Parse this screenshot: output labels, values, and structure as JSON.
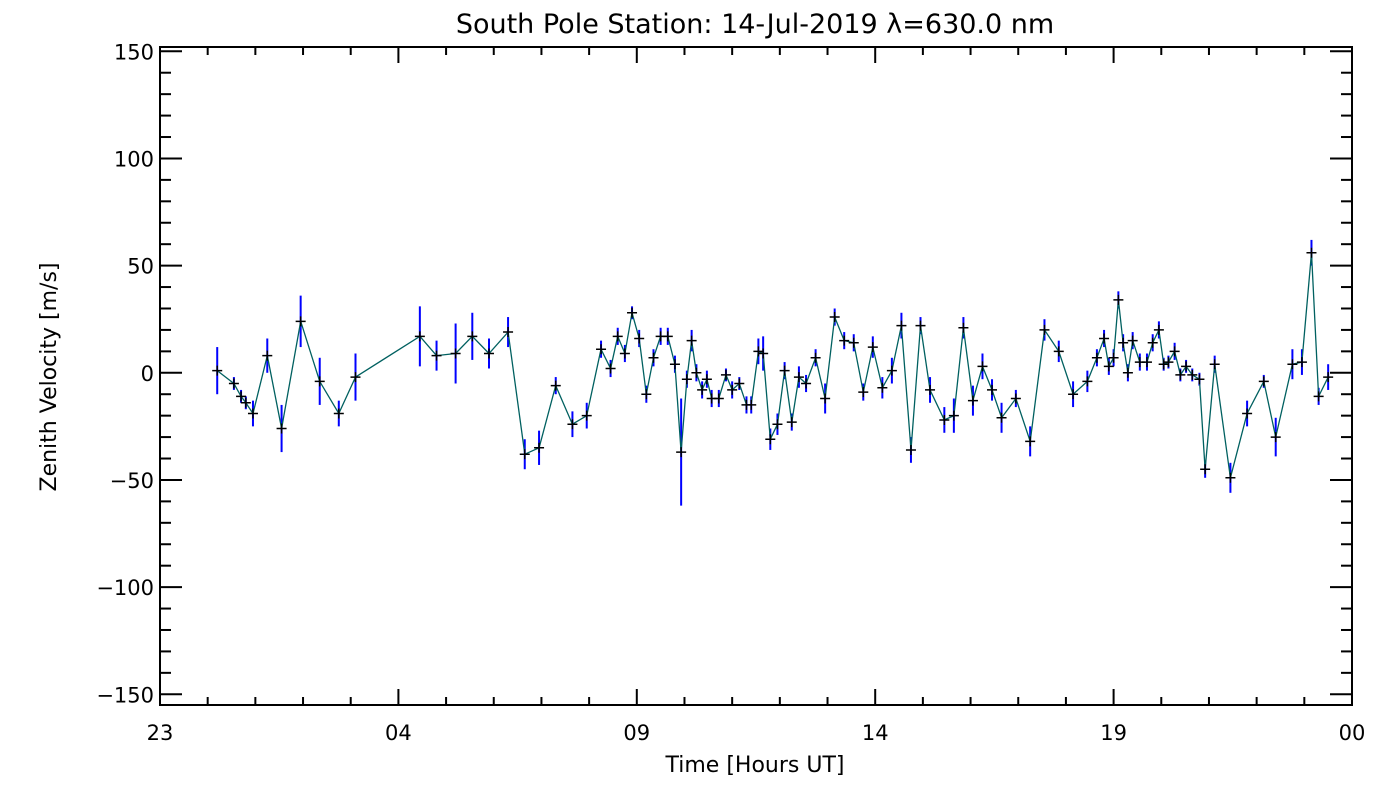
{
  "chart_data": {
    "type": "line",
    "title": "South Pole Station: 14-Jul-2019 λ=630.0 nm",
    "xlabel": "Time [Hours UT]",
    "ylabel": "Zenith Velocity [m/s]",
    "xlim": [
      23,
      48
    ],
    "ylim": [
      -155,
      152
    ],
    "xticks": [
      {
        "value": 23,
        "label": "23"
      },
      {
        "value": 28,
        "label": "04"
      },
      {
        "value": 33,
        "label": "09"
      },
      {
        "value": 38,
        "label": "14"
      },
      {
        "value": 43,
        "label": "19"
      },
      {
        "value": 48,
        "label": "00"
      }
    ],
    "yticks": [
      {
        "value": 150,
        "label": "150"
      },
      {
        "value": 100,
        "label": "100"
      },
      {
        "value": 50,
        "label": "50"
      },
      {
        "value": 0,
        "label": "0"
      },
      {
        "value": -50,
        "label": "−50"
      },
      {
        "value": -100,
        "label": "−100"
      },
      {
        "value": -150,
        "label": "−150"
      }
    ],
    "grid": false,
    "colors": {
      "line": "#006060",
      "marker": "#000000",
      "error_bar": "#0000ff",
      "axes": "#000000"
    },
    "series": [
      {
        "points": [
          {
            "x": 24.2,
            "y": 1,
            "err": 11
          },
          {
            "x": 24.55,
            "y": -5,
            "err": 3
          },
          {
            "x": 24.7,
            "y": -11,
            "err": 3
          },
          {
            "x": 24.8,
            "y": -14,
            "err": 3
          },
          {
            "x": 24.95,
            "y": -19,
            "err": 6
          },
          {
            "x": 25.25,
            "y": 8,
            "err": 8
          },
          {
            "x": 25.55,
            "y": -26,
            "err": 11
          },
          {
            "x": 25.95,
            "y": 24,
            "err": 12
          },
          {
            "x": 26.35,
            "y": -4,
            "err": 11
          },
          {
            "x": 26.75,
            "y": -19,
            "err": 6
          },
          {
            "x": 27.1,
            "y": -2,
            "err": 11
          },
          {
            "x": 28.45,
            "y": 17,
            "err": 14
          },
          {
            "x": 28.8,
            "y": 8,
            "err": 7
          },
          {
            "x": 29.2,
            "y": 9,
            "err": 14
          },
          {
            "x": 29.55,
            "y": 17,
            "err": 11
          },
          {
            "x": 29.9,
            "y": 9,
            "err": 7
          },
          {
            "x": 30.3,
            "y": 19,
            "err": 7
          },
          {
            "x": 30.65,
            "y": -38,
            "err": 7
          },
          {
            "x": 30.95,
            "y": -35,
            "err": 8
          },
          {
            "x": 31.3,
            "y": -6,
            "err": 4
          },
          {
            "x": 31.65,
            "y": -24,
            "err": 6
          },
          {
            "x": 31.95,
            "y": -20,
            "err": 6
          },
          {
            "x": 32.25,
            "y": 11,
            "err": 4
          },
          {
            "x": 32.45,
            "y": 2,
            "err": 4
          },
          {
            "x": 32.6,
            "y": 17,
            "err": 4
          },
          {
            "x": 32.75,
            "y": 9,
            "err": 4
          },
          {
            "x": 32.9,
            "y": 28,
            "err": 3
          },
          {
            "x": 33.05,
            "y": 16,
            "err": 4
          },
          {
            "x": 33.2,
            "y": -10,
            "err": 4
          },
          {
            "x": 33.35,
            "y": 7,
            "err": 4
          },
          {
            "x": 33.5,
            "y": 17,
            "err": 4
          },
          {
            "x": 33.65,
            "y": 17,
            "err": 4
          },
          {
            "x": 33.8,
            "y": 4,
            "err": 4
          },
          {
            "x": 33.93,
            "y": -37,
            "err": 25
          },
          {
            "x": 34.05,
            "y": -3,
            "err": 4
          },
          {
            "x": 34.15,
            "y": 15,
            "err": 5
          },
          {
            "x": 34.25,
            "y": 0,
            "err": 4
          },
          {
            "x": 34.37,
            "y": -8,
            "err": 4
          },
          {
            "x": 34.47,
            "y": -3,
            "err": 4
          },
          {
            "x": 34.57,
            "y": -12,
            "err": 4
          },
          {
            "x": 34.72,
            "y": -12,
            "err": 4
          },
          {
            "x": 34.87,
            "y": -1,
            "err": 3
          },
          {
            "x": 35.0,
            "y": -8,
            "err": 4
          },
          {
            "x": 35.15,
            "y": -5,
            "err": 3
          },
          {
            "x": 35.3,
            "y": -15,
            "err": 4
          },
          {
            "x": 35.4,
            "y": -15,
            "err": 4
          },
          {
            "x": 35.55,
            "y": 10,
            "err": 6
          },
          {
            "x": 35.65,
            "y": 9,
            "err": 8
          },
          {
            "x": 35.8,
            "y": -31,
            "err": 5
          },
          {
            "x": 35.95,
            "y": -24,
            "err": 5
          },
          {
            "x": 36.1,
            "y": 1,
            "err": 4
          },
          {
            "x": 36.25,
            "y": -23,
            "err": 4
          },
          {
            "x": 36.4,
            "y": -2,
            "err": 5
          },
          {
            "x": 36.55,
            "y": -5,
            "err": 4
          },
          {
            "x": 36.75,
            "y": 7,
            "err": 4
          },
          {
            "x": 36.95,
            "y": -12,
            "err": 7
          },
          {
            "x": 37.15,
            "y": 26,
            "err": 4
          },
          {
            "x": 37.35,
            "y": 15,
            "err": 4
          },
          {
            "x": 37.55,
            "y": 14,
            "err": 4
          },
          {
            "x": 37.75,
            "y": -9,
            "err": 4
          },
          {
            "x": 37.95,
            "y": 12,
            "err": 5
          },
          {
            "x": 38.15,
            "y": -7,
            "err": 5
          },
          {
            "x": 38.35,
            "y": 1,
            "err": 6
          },
          {
            "x": 38.55,
            "y": 22,
            "err": 6
          },
          {
            "x": 38.75,
            "y": -36,
            "err": 6
          },
          {
            "x": 38.95,
            "y": 22,
            "err": 4
          },
          {
            "x": 39.15,
            "y": -8,
            "err": 6
          },
          {
            "x": 39.45,
            "y": -22,
            "err": 6
          },
          {
            "x": 39.65,
            "y": -20,
            "err": 8
          },
          {
            "x": 39.85,
            "y": 21,
            "err": 5
          },
          {
            "x": 40.05,
            "y": -13,
            "err": 7
          },
          {
            "x": 40.25,
            "y": 3,
            "err": 6
          },
          {
            "x": 40.45,
            "y": -8,
            "err": 5
          },
          {
            "x": 40.65,
            "y": -21,
            "err": 7
          },
          {
            "x": 40.95,
            "y": -12,
            "err": 4
          },
          {
            "x": 41.25,
            "y": -32,
            "err": 7
          },
          {
            "x": 41.55,
            "y": 20,
            "err": 5
          },
          {
            "x": 41.85,
            "y": 10,
            "err": 5
          },
          {
            "x": 42.15,
            "y": -10,
            "err": 6
          },
          {
            "x": 42.45,
            "y": -4,
            "err": 5
          },
          {
            "x": 42.65,
            "y": 7,
            "err": 4
          },
          {
            "x": 42.8,
            "y": 16,
            "err": 4
          },
          {
            "x": 42.9,
            "y": 3,
            "err": 4
          },
          {
            "x": 43.0,
            "y": 7,
            "err": 4
          },
          {
            "x": 43.1,
            "y": 34,
            "err": 4
          },
          {
            "x": 43.2,
            "y": 14,
            "err": 4
          },
          {
            "x": 43.3,
            "y": 0,
            "err": 4
          },
          {
            "x": 43.4,
            "y": 15,
            "err": 4
          },
          {
            "x": 43.55,
            "y": 5,
            "err": 4
          },
          {
            "x": 43.7,
            "y": 5,
            "err": 4
          },
          {
            "x": 43.82,
            "y": 14,
            "err": 4
          },
          {
            "x": 43.95,
            "y": 20,
            "err": 4
          },
          {
            "x": 44.05,
            "y": 4,
            "err": 3
          },
          {
            "x": 44.15,
            "y": 5,
            "err": 3
          },
          {
            "x": 44.28,
            "y": 10,
            "err": 4
          },
          {
            "x": 44.4,
            "y": -1,
            "err": 3
          },
          {
            "x": 44.52,
            "y": 3,
            "err": 3
          },
          {
            "x": 44.65,
            "y": -1,
            "err": 3
          },
          {
            "x": 44.8,
            "y": -3,
            "err": 3
          },
          {
            "x": 44.92,
            "y": -45,
            "err": 4
          },
          {
            "x": 45.12,
            "y": 4,
            "err": 4
          },
          {
            "x": 45.45,
            "y": -49,
            "err": 7
          },
          {
            "x": 45.8,
            "y": -19,
            "err": 6
          },
          {
            "x": 46.15,
            "y": -4,
            "err": 3
          },
          {
            "x": 46.4,
            "y": -30,
            "err": 9
          },
          {
            "x": 46.75,
            "y": 4,
            "err": 7
          },
          {
            "x": 46.95,
            "y": 5,
            "err": 6
          },
          {
            "x": 47.15,
            "y": 56,
            "err": 6
          },
          {
            "x": 47.3,
            "y": -11,
            "err": 4
          },
          {
            "x": 47.5,
            "y": -2,
            "err": 6
          }
        ]
      }
    ]
  }
}
